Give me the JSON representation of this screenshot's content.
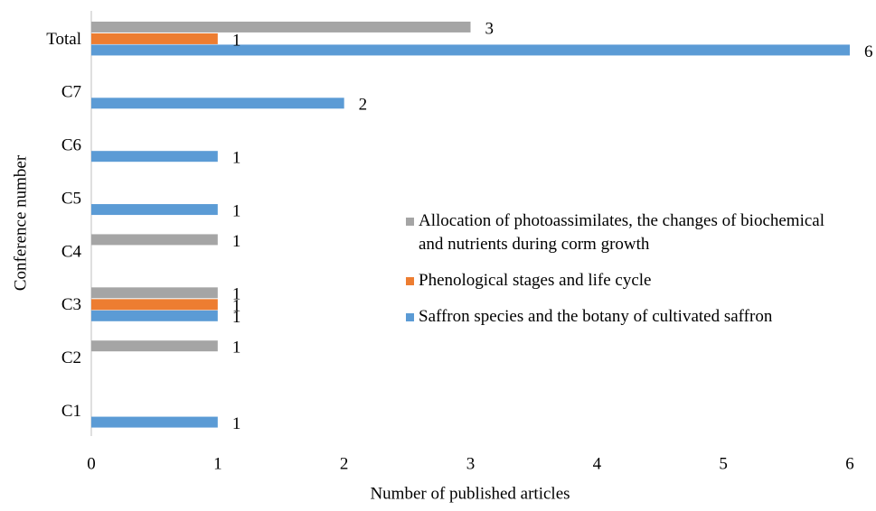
{
  "chart_data": {
    "type": "hbar",
    "categories": [
      "C1",
      "C2",
      "C3",
      "C4",
      "C5",
      "C6",
      "C7",
      "Total"
    ],
    "series": [
      {
        "name": "Saffron species and the botany of cultivated saffron",
        "color": "#5b9bd5",
        "values": [
          1,
          null,
          1,
          null,
          1,
          1,
          2,
          6
        ]
      },
      {
        "name": "Phenological stages and life cycle",
        "color": "#ed7d31",
        "values": [
          null,
          null,
          1,
          null,
          null,
          null,
          null,
          1
        ]
      },
      {
        "name": "Allocation of photoassimilates, the changes of biochemical and nutrients during corm growth",
        "color": "#a5a5a5",
        "values": [
          null,
          1,
          1,
          1,
          null,
          null,
          null,
          3
        ]
      }
    ],
    "xlim": [
      0,
      6
    ],
    "xticks": [
      0,
      1,
      2,
      3,
      4,
      5,
      6
    ],
    "xlabel": "Number of published articles",
    "ylabel": "Conference number",
    "grid": false
  }
}
